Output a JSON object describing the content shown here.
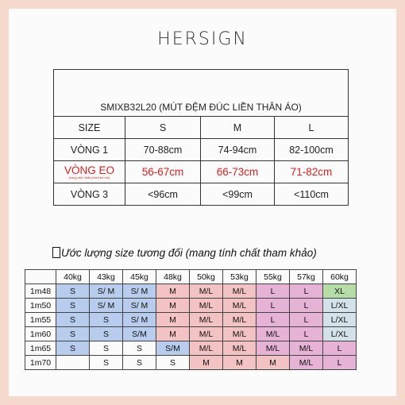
{
  "brand": "HERSIGN",
  "size_table": {
    "title": "SMIXB32L20 (MÚT ĐỆM ĐÚC LIỀN THÂN ÁO)",
    "header": [
      "SIZE",
      "S",
      "M",
      "L"
    ],
    "rows": [
      {
        "label": "VÒNG 1",
        "values": [
          "70-88cm",
          "74-94cm",
          "82-100cm"
        ]
      },
      {
        "label": "VÒNG EO",
        "note": "(vòng nhỏ nhất phía trên rốn)",
        "values": [
          "56-67cm",
          "66-73cm",
          "71-82cm"
        ],
        "color": "#e0201e"
      },
      {
        "label": "VÒNG 3",
        "values": [
          "<96cm",
          "<99cm",
          "<110cm"
        ]
      }
    ]
  },
  "guide": {
    "title": "Ước lượng size tương đối (mang tính chất tham khảo)",
    "weights": [
      "40kg",
      "43kg",
      "45kg",
      "48kg",
      "50kg",
      "53kg",
      "55kg",
      "57kg",
      "60kg"
    ],
    "rows": [
      {
        "height": "1m48",
        "cells": [
          "S",
          "S/ M",
          "S/ M",
          "M",
          "M/L",
          "M/L",
          "L",
          "L",
          "XL"
        ]
      },
      {
        "height": "1m50",
        "cells": [
          "S",
          "S/ M",
          "S/ M",
          "M",
          "M/L",
          "M/L",
          "L",
          "L",
          "L/XL"
        ]
      },
      {
        "height": "1m55",
        "cells": [
          "S",
          "S",
          "S/ M",
          "M",
          "M/L",
          "M/L",
          "L",
          "L",
          "L/XL"
        ]
      },
      {
        "height": "1m60",
        "cells": [
          "S",
          "S",
          "S/M",
          "M",
          "M/L",
          "M/L",
          "M/L",
          "L",
          "L/XL"
        ]
      },
      {
        "height": "1m65",
        "cells": [
          "S",
          "S",
          "S",
          "S/M",
          "M/L",
          "M/L",
          "M/L",
          "M/L",
          "L"
        ]
      },
      {
        "height": "1m70",
        "cells": [
          "",
          "S",
          "S",
          "S",
          "M",
          "M",
          "M",
          "M/L",
          "L"
        ]
      }
    ],
    "colors": {
      "S": "#b8ccee",
      "M": "#f3c2c2",
      "L": "#e6b2d5",
      "XL": "#b7dda7",
      "L/XL": "#d3e2e9"
    }
  }
}
